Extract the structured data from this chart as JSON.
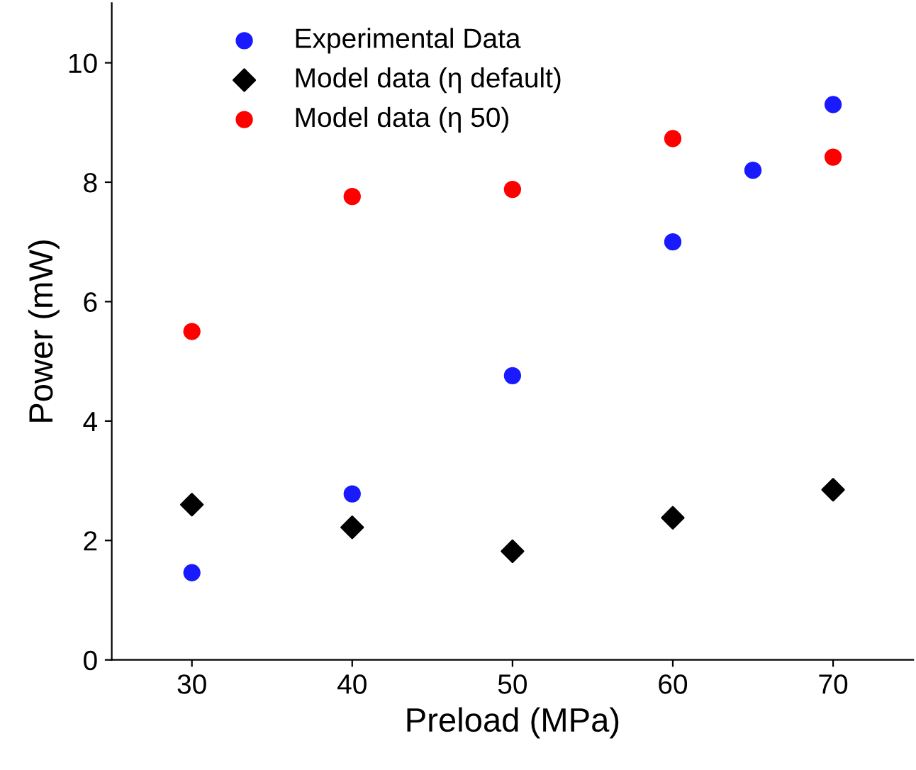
{
  "chart_data": {
    "type": "scatter",
    "xlabel": "Preload (MPa)",
    "ylabel": "Power (mW)",
    "xlim": [
      25,
      75
    ],
    "ylim": [
      0,
      11
    ],
    "xticks": [
      30,
      40,
      50,
      60,
      70
    ],
    "yticks": [
      0,
      2,
      4,
      6,
      8,
      10
    ],
    "grid": false,
    "legend": "top left",
    "series": [
      {
        "name": "Experimental Data",
        "color": "#1a1aff",
        "marker": "circle",
        "x": [
          30,
          40,
          50,
          60,
          65,
          70
        ],
        "values": [
          1.46,
          2.78,
          4.76,
          7.0,
          8.2,
          9.3
        ]
      },
      {
        "name": "Model data (η default)",
        "color": "#000000",
        "marker": "diamond",
        "x": [
          30,
          40,
          50,
          60,
          70
        ],
        "values": [
          2.6,
          2.22,
          1.82,
          2.38,
          2.85
        ]
      },
      {
        "name": "Model data (η 50)",
        "color": "#ff0000",
        "marker": "circle",
        "x": [
          30,
          40,
          50,
          60,
          70
        ],
        "values": [
          5.5,
          7.76,
          7.88,
          8.73,
          8.42
        ]
      }
    ]
  }
}
